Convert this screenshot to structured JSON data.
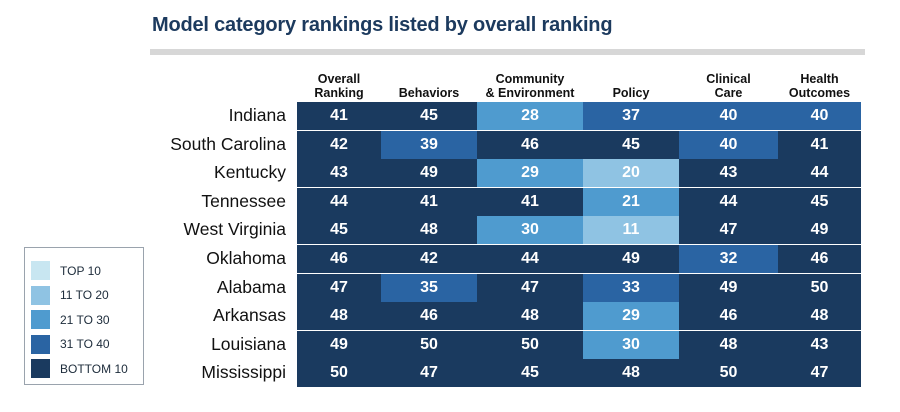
{
  "title": "Model category rankings listed by overall ranking",
  "chart_data": {
    "type": "heatmap",
    "title": "Model category rankings listed by overall ranking",
    "columns": [
      [
        "Overall",
        "Ranking"
      ],
      [
        "Behaviors"
      ],
      [
        "Community",
        "& Environment"
      ],
      [
        "Policy"
      ],
      [
        "Clinical",
        "Care"
      ],
      [
        "Health",
        "Outcomes"
      ]
    ],
    "rows": [
      "Indiana",
      "South Carolina",
      "Kentucky",
      "Tennessee",
      "West Virginia",
      "Oklahoma",
      "Alabama",
      "Arkansas",
      "Louisiana",
      "Mississippi"
    ],
    "values": [
      [
        41,
        45,
        28,
        37,
        40,
        40
      ],
      [
        42,
        39,
        46,
        45,
        40,
        41
      ],
      [
        43,
        49,
        29,
        20,
        43,
        44
      ],
      [
        44,
        41,
        41,
        21,
        44,
        45
      ],
      [
        45,
        48,
        30,
        11,
        47,
        49
      ],
      [
        46,
        42,
        44,
        49,
        32,
        46
      ],
      [
        47,
        35,
        47,
        33,
        49,
        50
      ],
      [
        48,
        46,
        48,
        29,
        46,
        48
      ],
      [
        49,
        50,
        50,
        30,
        48,
        43
      ],
      [
        50,
        47,
        45,
        48,
        50,
        47
      ]
    ],
    "legend": {
      "placement": "bottom-left",
      "items": [
        {
          "label": "TOP 10",
          "color": "#c8e6f1"
        },
        {
          "label": "11 TO 20",
          "color": "#8fc3e3"
        },
        {
          "label": "21 TO 30",
          "color": "#4f9bcf"
        },
        {
          "label": "31 TO 40",
          "color": "#2a64a3"
        },
        {
          "label": "BOTTOM 10",
          "color": "#1a3a5f"
        }
      ]
    }
  }
}
